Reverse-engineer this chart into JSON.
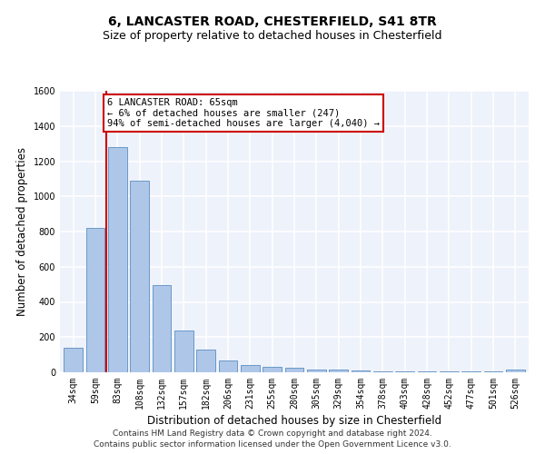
{
  "title1": "6, LANCASTER ROAD, CHESTERFIELD, S41 8TR",
  "title2": "Size of property relative to detached houses in Chesterfield",
  "xlabel": "Distribution of detached houses by size in Chesterfield",
  "ylabel": "Number of detached properties",
  "categories": [
    "34sqm",
    "59sqm",
    "83sqm",
    "108sqm",
    "132sqm",
    "157sqm",
    "182sqm",
    "206sqm",
    "231sqm",
    "255sqm",
    "280sqm",
    "305sqm",
    "329sqm",
    "354sqm",
    "378sqm",
    "403sqm",
    "428sqm",
    "452sqm",
    "477sqm",
    "501sqm",
    "526sqm"
  ],
  "values": [
    140,
    820,
    1280,
    1090,
    495,
    240,
    130,
    65,
    40,
    30,
    25,
    15,
    15,
    10,
    3,
    3,
    3,
    3,
    3,
    3,
    15
  ],
  "bar_color": "#aec6e8",
  "bar_edge_color": "#5a8fc0",
  "vline_color": "#cc0000",
  "annotation_text": "6 LANCASTER ROAD: 65sqm\n← 6% of detached houses are smaller (247)\n94% of semi-detached houses are larger (4,040) →",
  "annotation_box_color": "#ffffff",
  "annotation_box_edge": "#cc0000",
  "ylim": [
    0,
    1600
  ],
  "yticks": [
    0,
    200,
    400,
    600,
    800,
    1000,
    1200,
    1400,
    1600
  ],
  "background_color": "#eef2fb",
  "grid_color": "#ffffff",
  "footer1": "Contains HM Land Registry data © Crown copyright and database right 2024.",
  "footer2": "Contains public sector information licensed under the Open Government Licence v3.0.",
  "title_fontsize": 10,
  "subtitle_fontsize": 9,
  "axis_label_fontsize": 8.5,
  "tick_fontsize": 7,
  "annotation_fontsize": 7.5,
  "footer_fontsize": 6.5
}
